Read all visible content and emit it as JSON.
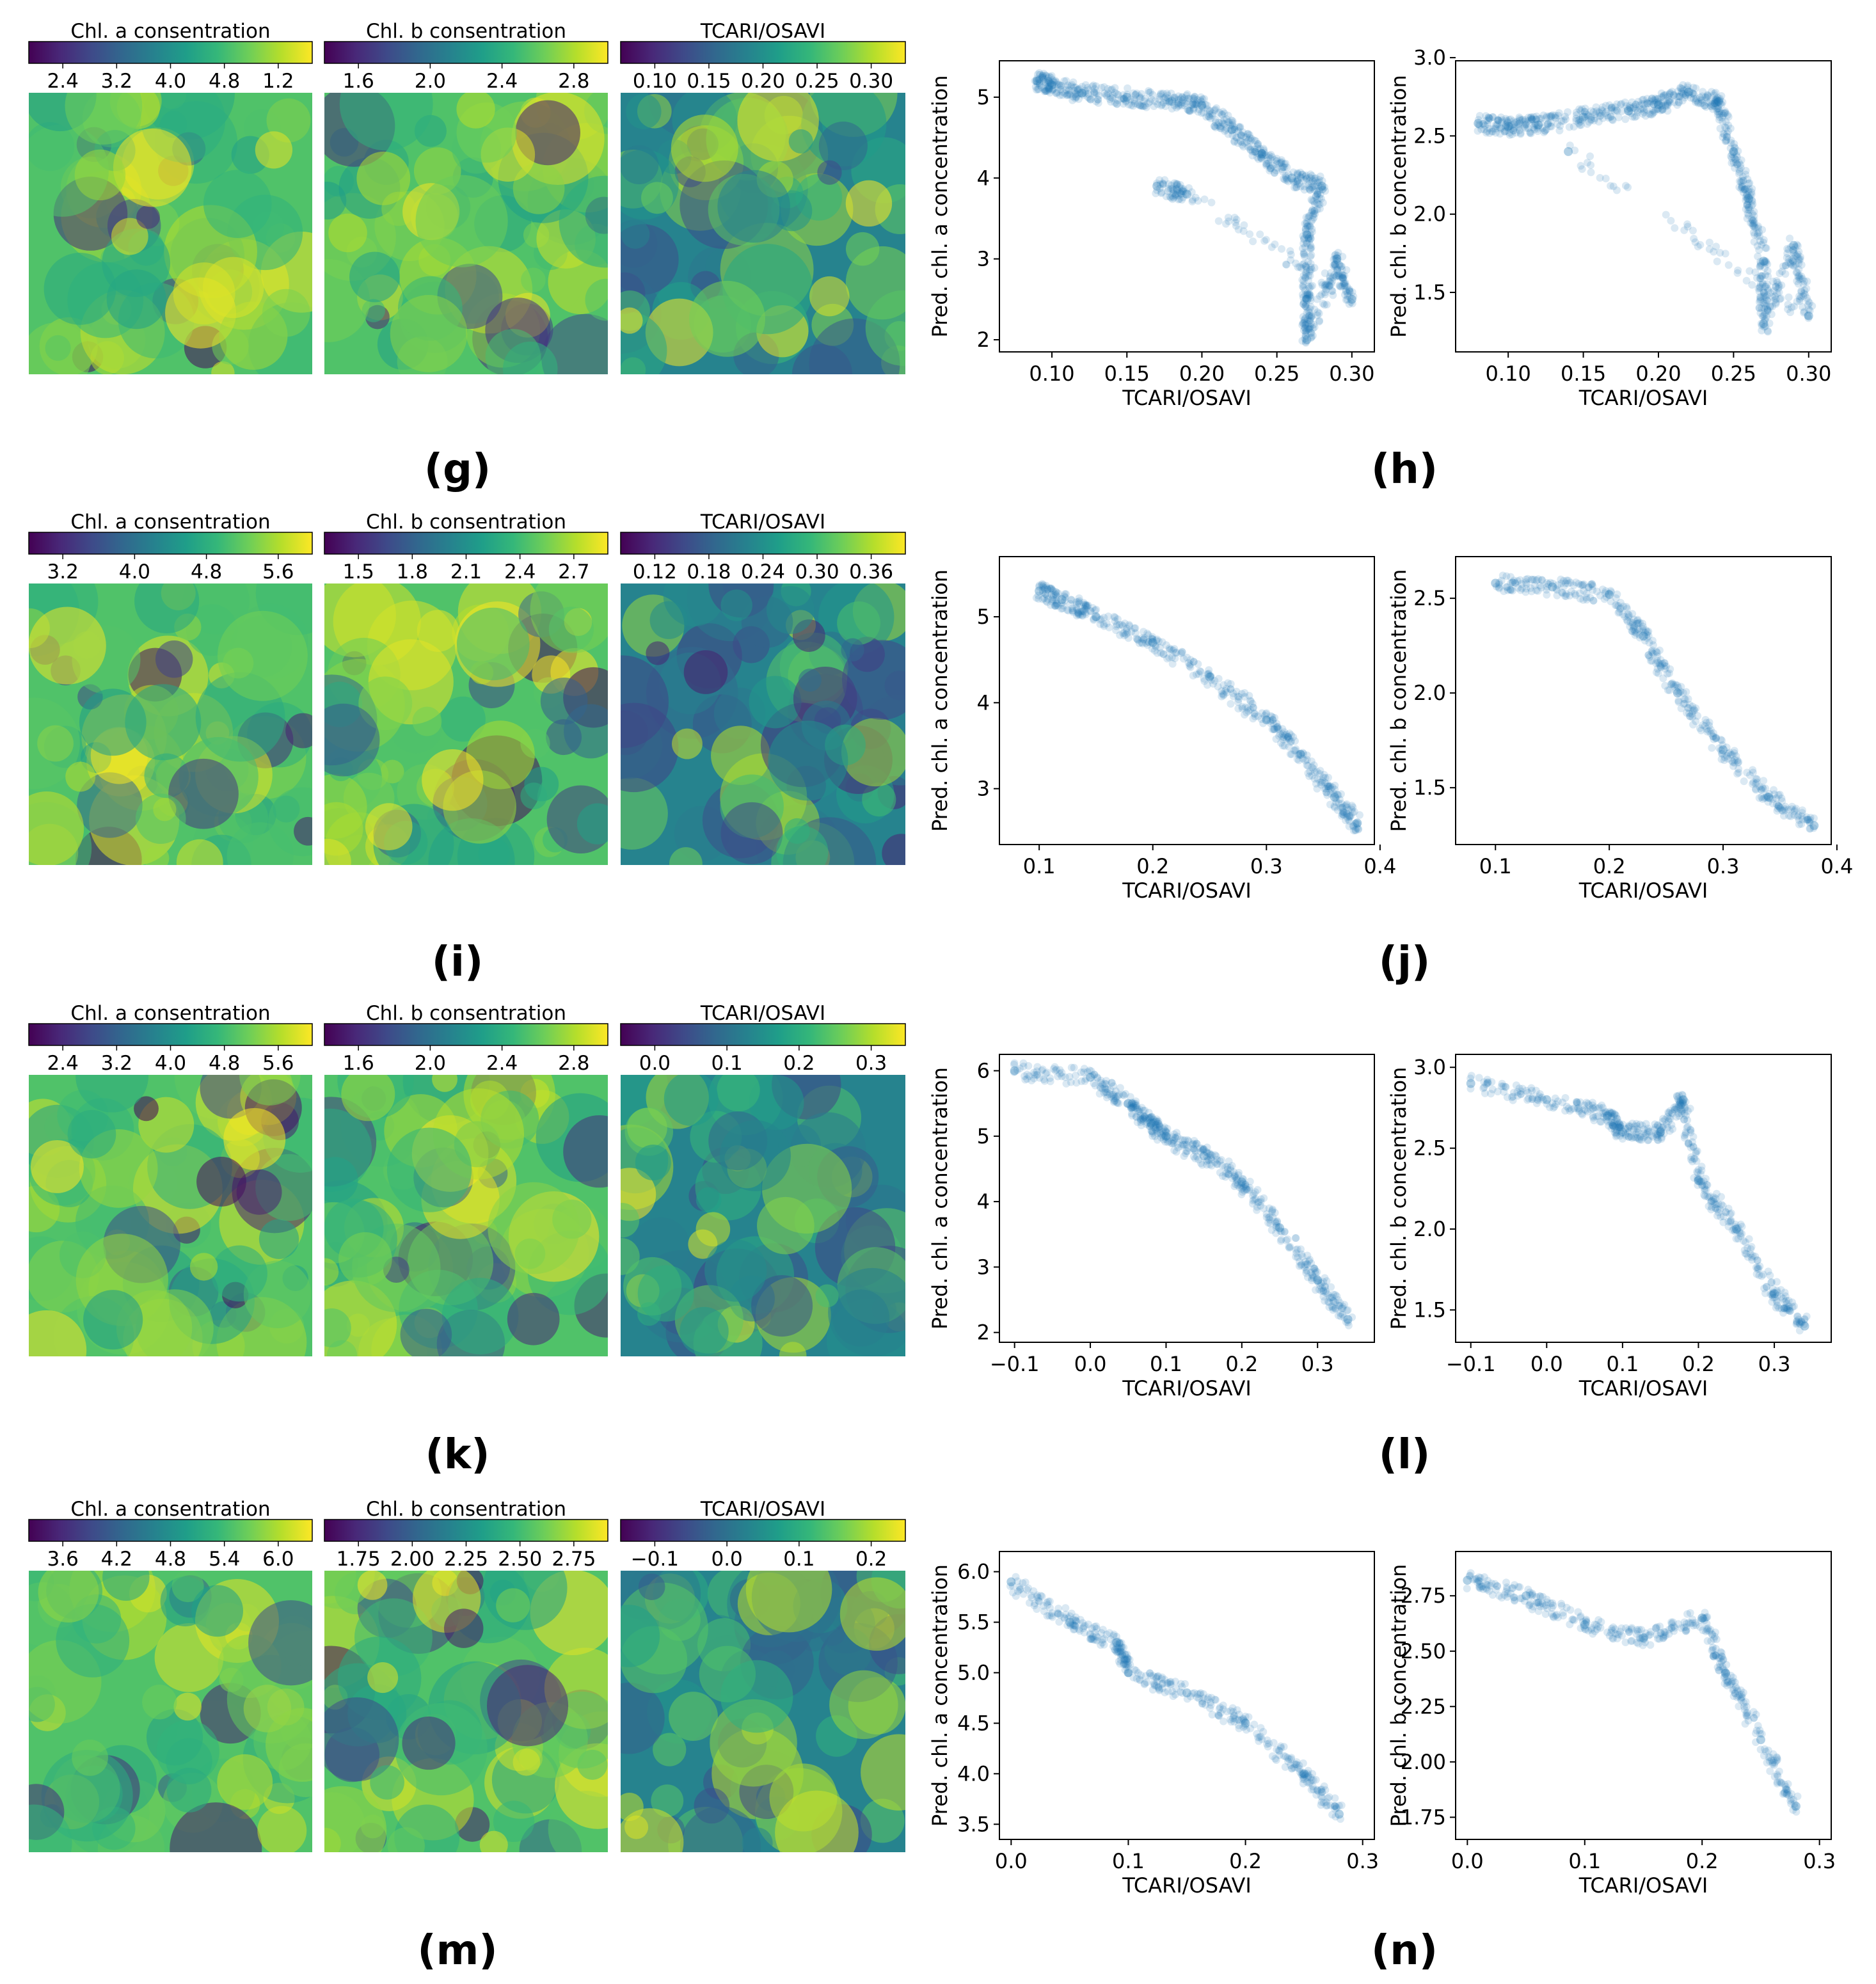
{
  "colors": {
    "viridis": [
      "#440154",
      "#482878",
      "#3e4a89",
      "#31688e",
      "#26828e",
      "#1f9e89",
      "#35b779",
      "#6ece58",
      "#b5de2b",
      "#fde725"
    ],
    "scatter_point": "#1f77b4"
  },
  "maps": [
    {
      "panel": "g",
      "colorbars": [
        {
          "title": "Chl. a consentration",
          "ticks": [
            "2.4",
            "3.2",
            "4.0",
            "4.8",
            "1.2"
          ]
        },
        {
          "title": "Chl. b consentration",
          "ticks": [
            "1.6",
            "2.0",
            "2.4",
            "2.8"
          ]
        },
        {
          "title": "TCARI/OSAVI",
          "ticks": [
            "0.10",
            "0.15",
            "0.20",
            "0.25",
            "0.30"
          ]
        }
      ]
    },
    {
      "panel": "i",
      "colorbars": [
        {
          "title": "Chl. a consentration",
          "ticks": [
            "3.2",
            "4.0",
            "4.8",
            "5.6"
          ]
        },
        {
          "title": "Chl. b consentration",
          "ticks": [
            "1.5",
            "1.8",
            "2.1",
            "2.4",
            "2.7"
          ]
        },
        {
          "title": "TCARI/OSAVI",
          "ticks": [
            "0.12",
            "0.18",
            "0.24",
            "0.30",
            "0.36"
          ]
        }
      ]
    },
    {
      "panel": "k",
      "colorbars": [
        {
          "title": "Chl. a consentration",
          "ticks": [
            "2.4",
            "3.2",
            "4.0",
            "4.8",
            "5.6"
          ]
        },
        {
          "title": "Chl. b consentration",
          "ticks": [
            "1.6",
            "2.0",
            "2.4",
            "2.8"
          ]
        },
        {
          "title": "TCARI/OSAVI",
          "ticks": [
            "0.0",
            "0.1",
            "0.2",
            "0.3"
          ]
        }
      ]
    },
    {
      "panel": "m",
      "colorbars": [
        {
          "title": "Chl. a consentration",
          "ticks": [
            "3.6",
            "4.2",
            "4.8",
            "5.4",
            "6.0"
          ]
        },
        {
          "title": "Chl. b consentration",
          "ticks": [
            "1.75",
            "2.00",
            "2.25",
            "2.50",
            "2.75"
          ]
        },
        {
          "title": "TCARI/OSAVI",
          "ticks": [
            "−0.1",
            "0.0",
            "0.1",
            "0.2"
          ]
        }
      ]
    }
  ],
  "chart_data": [
    {
      "type": "scatter",
      "panel": "h",
      "title": "",
      "xlabel": "TCARI/OSAVI",
      "ylabel": "Pred. chl. a concentration",
      "xlim": [
        0.065,
        0.315
      ],
      "ylim": [
        1.85,
        5.45
      ],
      "xticks": [
        0.1,
        0.15,
        0.2,
        0.25,
        0.3
      ],
      "xticklabels": [
        "0.10",
        "0.15",
        "0.20",
        "0.25",
        "0.30"
      ],
      "yticks": [
        2,
        3,
        4,
        5
      ],
      "yticklabels": [
        "2",
        "3",
        "4",
        "5"
      ],
      "points": [
        [
          0.09,
          5.2
        ],
        [
          0.1,
          5.15
        ],
        [
          0.12,
          5.05
        ],
        [
          0.15,
          5.0
        ],
        [
          0.18,
          4.95
        ],
        [
          0.2,
          4.9
        ],
        [
          0.22,
          4.6
        ],
        [
          0.24,
          4.3
        ],
        [
          0.26,
          4.0
        ],
        [
          0.28,
          3.9
        ],
        [
          0.27,
          3.3
        ],
        [
          0.27,
          2.5
        ],
        [
          0.27,
          2.0
        ],
        [
          0.29,
          3.0
        ],
        [
          0.3,
          2.5
        ],
        [
          0.19,
          3.8
        ],
        [
          0.17,
          3.9
        ]
      ]
    },
    {
      "type": "scatter",
      "panel": "h",
      "title": "",
      "xlabel": "TCARI/OSAVI",
      "ylabel": "Pred. chl. b concentration",
      "xlim": [
        0.065,
        0.315
      ],
      "ylim": [
        1.12,
        2.98
      ],
      "xticks": [
        0.1,
        0.15,
        0.2,
        0.25,
        0.3
      ],
      "xticklabels": [
        "0.10",
        "0.15",
        "0.20",
        "0.25",
        "0.30"
      ],
      "yticks": [
        1.5,
        2.0,
        2.5,
        3.0
      ],
      "yticklabels": [
        "1.5",
        "2.0",
        "2.5",
        "3.0"
      ],
      "points": [
        [
          0.08,
          2.58
        ],
        [
          0.1,
          2.56
        ],
        [
          0.12,
          2.57
        ],
        [
          0.15,
          2.62
        ],
        [
          0.18,
          2.66
        ],
        [
          0.2,
          2.7
        ],
        [
          0.22,
          2.78
        ],
        [
          0.24,
          2.72
        ],
        [
          0.25,
          2.4
        ],
        [
          0.26,
          2.1
        ],
        [
          0.27,
          1.7
        ],
        [
          0.27,
          1.3
        ],
        [
          0.29,
          1.8
        ],
        [
          0.3,
          1.35
        ],
        [
          0.14,
          2.4
        ]
      ]
    },
    {
      "type": "scatter",
      "panel": "j",
      "title": "",
      "xlabel": "TCARI/OSAVI",
      "ylabel": "Pred. chl. a concentration",
      "xlim": [
        0.065,
        0.395
      ],
      "ylim": [
        2.35,
        5.7
      ],
      "xticks": [
        0.1,
        0.2,
        0.3,
        0.4
      ],
      "xticklabels": [
        "0.1",
        "0.2",
        "0.3",
        "0.4"
      ],
      "yticks": [
        3,
        4,
        5
      ],
      "yticklabels": [
        "3",
        "4",
        "5"
      ],
      "points": [
        [
          0.1,
          5.3
        ],
        [
          0.12,
          5.2
        ],
        [
          0.15,
          5.0
        ],
        [
          0.2,
          4.7
        ],
        [
          0.25,
          4.3
        ],
        [
          0.3,
          3.8
        ],
        [
          0.33,
          3.4
        ],
        [
          0.36,
          2.9
        ],
        [
          0.38,
          2.6
        ]
      ]
    },
    {
      "type": "scatter",
      "panel": "j",
      "title": "",
      "xlabel": "TCARI/OSAVI",
      "ylabel": "Pred. chl. b concentration",
      "xlim": [
        0.065,
        0.395
      ],
      "ylim": [
        1.2,
        2.72
      ],
      "xticks": [
        0.1,
        0.2,
        0.3,
        0.4
      ],
      "xticklabels": [
        "0.1",
        "0.2",
        "0.3",
        "0.4"
      ],
      "yticks": [
        1.5,
        2.0,
        2.5
      ],
      "yticklabels": [
        "1.5",
        "2.0",
        "2.5"
      ],
      "points": [
        [
          0.1,
          2.58
        ],
        [
          0.15,
          2.56
        ],
        [
          0.2,
          2.52
        ],
        [
          0.23,
          2.3
        ],
        [
          0.26,
          2.0
        ],
        [
          0.3,
          1.7
        ],
        [
          0.34,
          1.45
        ],
        [
          0.38,
          1.3
        ]
      ]
    },
    {
      "type": "scatter",
      "panel": "l",
      "title": "",
      "xlabel": "TCARI/OSAVI",
      "ylabel": "Pred. chl. a concentration",
      "xlim": [
        -0.12,
        0.375
      ],
      "ylim": [
        1.85,
        6.25
      ],
      "xticks": [
        -0.1,
        0.0,
        0.1,
        0.2,
        0.3
      ],
      "xticklabels": [
        "−0.1",
        "0.0",
        "0.1",
        "0.2",
        "0.3"
      ],
      "yticks": [
        2,
        3,
        4,
        5,
        6
      ],
      "yticklabels": [
        "2",
        "3",
        "4",
        "5",
        "6"
      ],
      "points": [
        [
          -0.1,
          6.0
        ],
        [
          0.0,
          5.9
        ],
        [
          0.05,
          5.5
        ],
        [
          0.08,
          5.2
        ],
        [
          0.1,
          5.0
        ],
        [
          0.15,
          4.7
        ],
        [
          0.2,
          4.3
        ],
        [
          0.25,
          3.6
        ],
        [
          0.3,
          2.8
        ],
        [
          0.34,
          2.2
        ]
      ]
    },
    {
      "type": "scatter",
      "panel": "l",
      "title": "",
      "xlabel": "TCARI/OSAVI",
      "ylabel": "Pred. chl. b concentration",
      "xlim": [
        -0.12,
        0.375
      ],
      "ylim": [
        1.3,
        3.08
      ],
      "xticks": [
        -0.1,
        0.0,
        0.1,
        0.2,
        0.3
      ],
      "xticklabels": [
        "−0.1",
        "0.0",
        "0.1",
        "0.2",
        "0.3"
      ],
      "yticks": [
        1.5,
        2.0,
        2.5,
        3.0
      ],
      "yticklabels": [
        "1.5",
        "2.0",
        "2.5",
        "3.0"
      ],
      "points": [
        [
          -0.1,
          2.9
        ],
        [
          0.0,
          2.8
        ],
        [
          0.08,
          2.7
        ],
        [
          0.1,
          2.6
        ],
        [
          0.15,
          2.6
        ],
        [
          0.18,
          2.8
        ],
        [
          0.2,
          2.3
        ],
        [
          0.25,
          2.0
        ],
        [
          0.3,
          1.6
        ],
        [
          0.34,
          1.4
        ]
      ]
    },
    {
      "type": "scatter",
      "panel": "n",
      "title": "",
      "xlabel": "TCARI/OSAVI",
      "ylabel": "Pred. chl. a concentration",
      "xlim": [
        -0.01,
        0.31
      ],
      "ylim": [
        3.35,
        6.2
      ],
      "xticks": [
        0.0,
        0.1,
        0.2,
        0.3
      ],
      "xticklabels": [
        "0.0",
        "0.1",
        "0.2",
        "0.3"
      ],
      "yticks": [
        3.5,
        4.0,
        4.5,
        5.0,
        5.5,
        6.0
      ],
      "yticklabels": [
        "3.5",
        "4.0",
        "4.5",
        "5.0",
        "5.5",
        "6.0"
      ],
      "points": [
        [
          0.0,
          5.9
        ],
        [
          0.05,
          5.5
        ],
        [
          0.09,
          5.3
        ],
        [
          0.1,
          5.0
        ],
        [
          0.15,
          4.8
        ],
        [
          0.2,
          4.5
        ],
        [
          0.25,
          4.0
        ],
        [
          0.28,
          3.6
        ]
      ]
    },
    {
      "type": "scatter",
      "panel": "n",
      "title": "",
      "xlabel": "TCARI/OSAVI",
      "ylabel": "Pred. chl. b concentration",
      "xlim": [
        -0.01,
        0.31
      ],
      "ylim": [
        1.65,
        2.95
      ],
      "xticks": [
        0.0,
        0.1,
        0.2,
        0.3
      ],
      "xticklabels": [
        "0.0",
        "0.1",
        "0.2",
        "0.3"
      ],
      "yticks": [
        1.75,
        2.0,
        2.25,
        2.5,
        2.75
      ],
      "yticklabels": [
        "1.75",
        "2.00",
        "2.25",
        "2.50",
        "2.75"
      ],
      "points": [
        [
          0.0,
          2.82
        ],
        [
          0.05,
          2.75
        ],
        [
          0.1,
          2.62
        ],
        [
          0.15,
          2.56
        ],
        [
          0.2,
          2.65
        ],
        [
          0.22,
          2.4
        ],
        [
          0.25,
          2.1
        ],
        [
          0.28,
          1.8
        ]
      ]
    }
  ],
  "panel_labels": [
    "(g)",
    "(h)",
    "(i)",
    "(j)",
    "(k)",
    "(l)",
    "(m)",
    "(n)"
  ]
}
